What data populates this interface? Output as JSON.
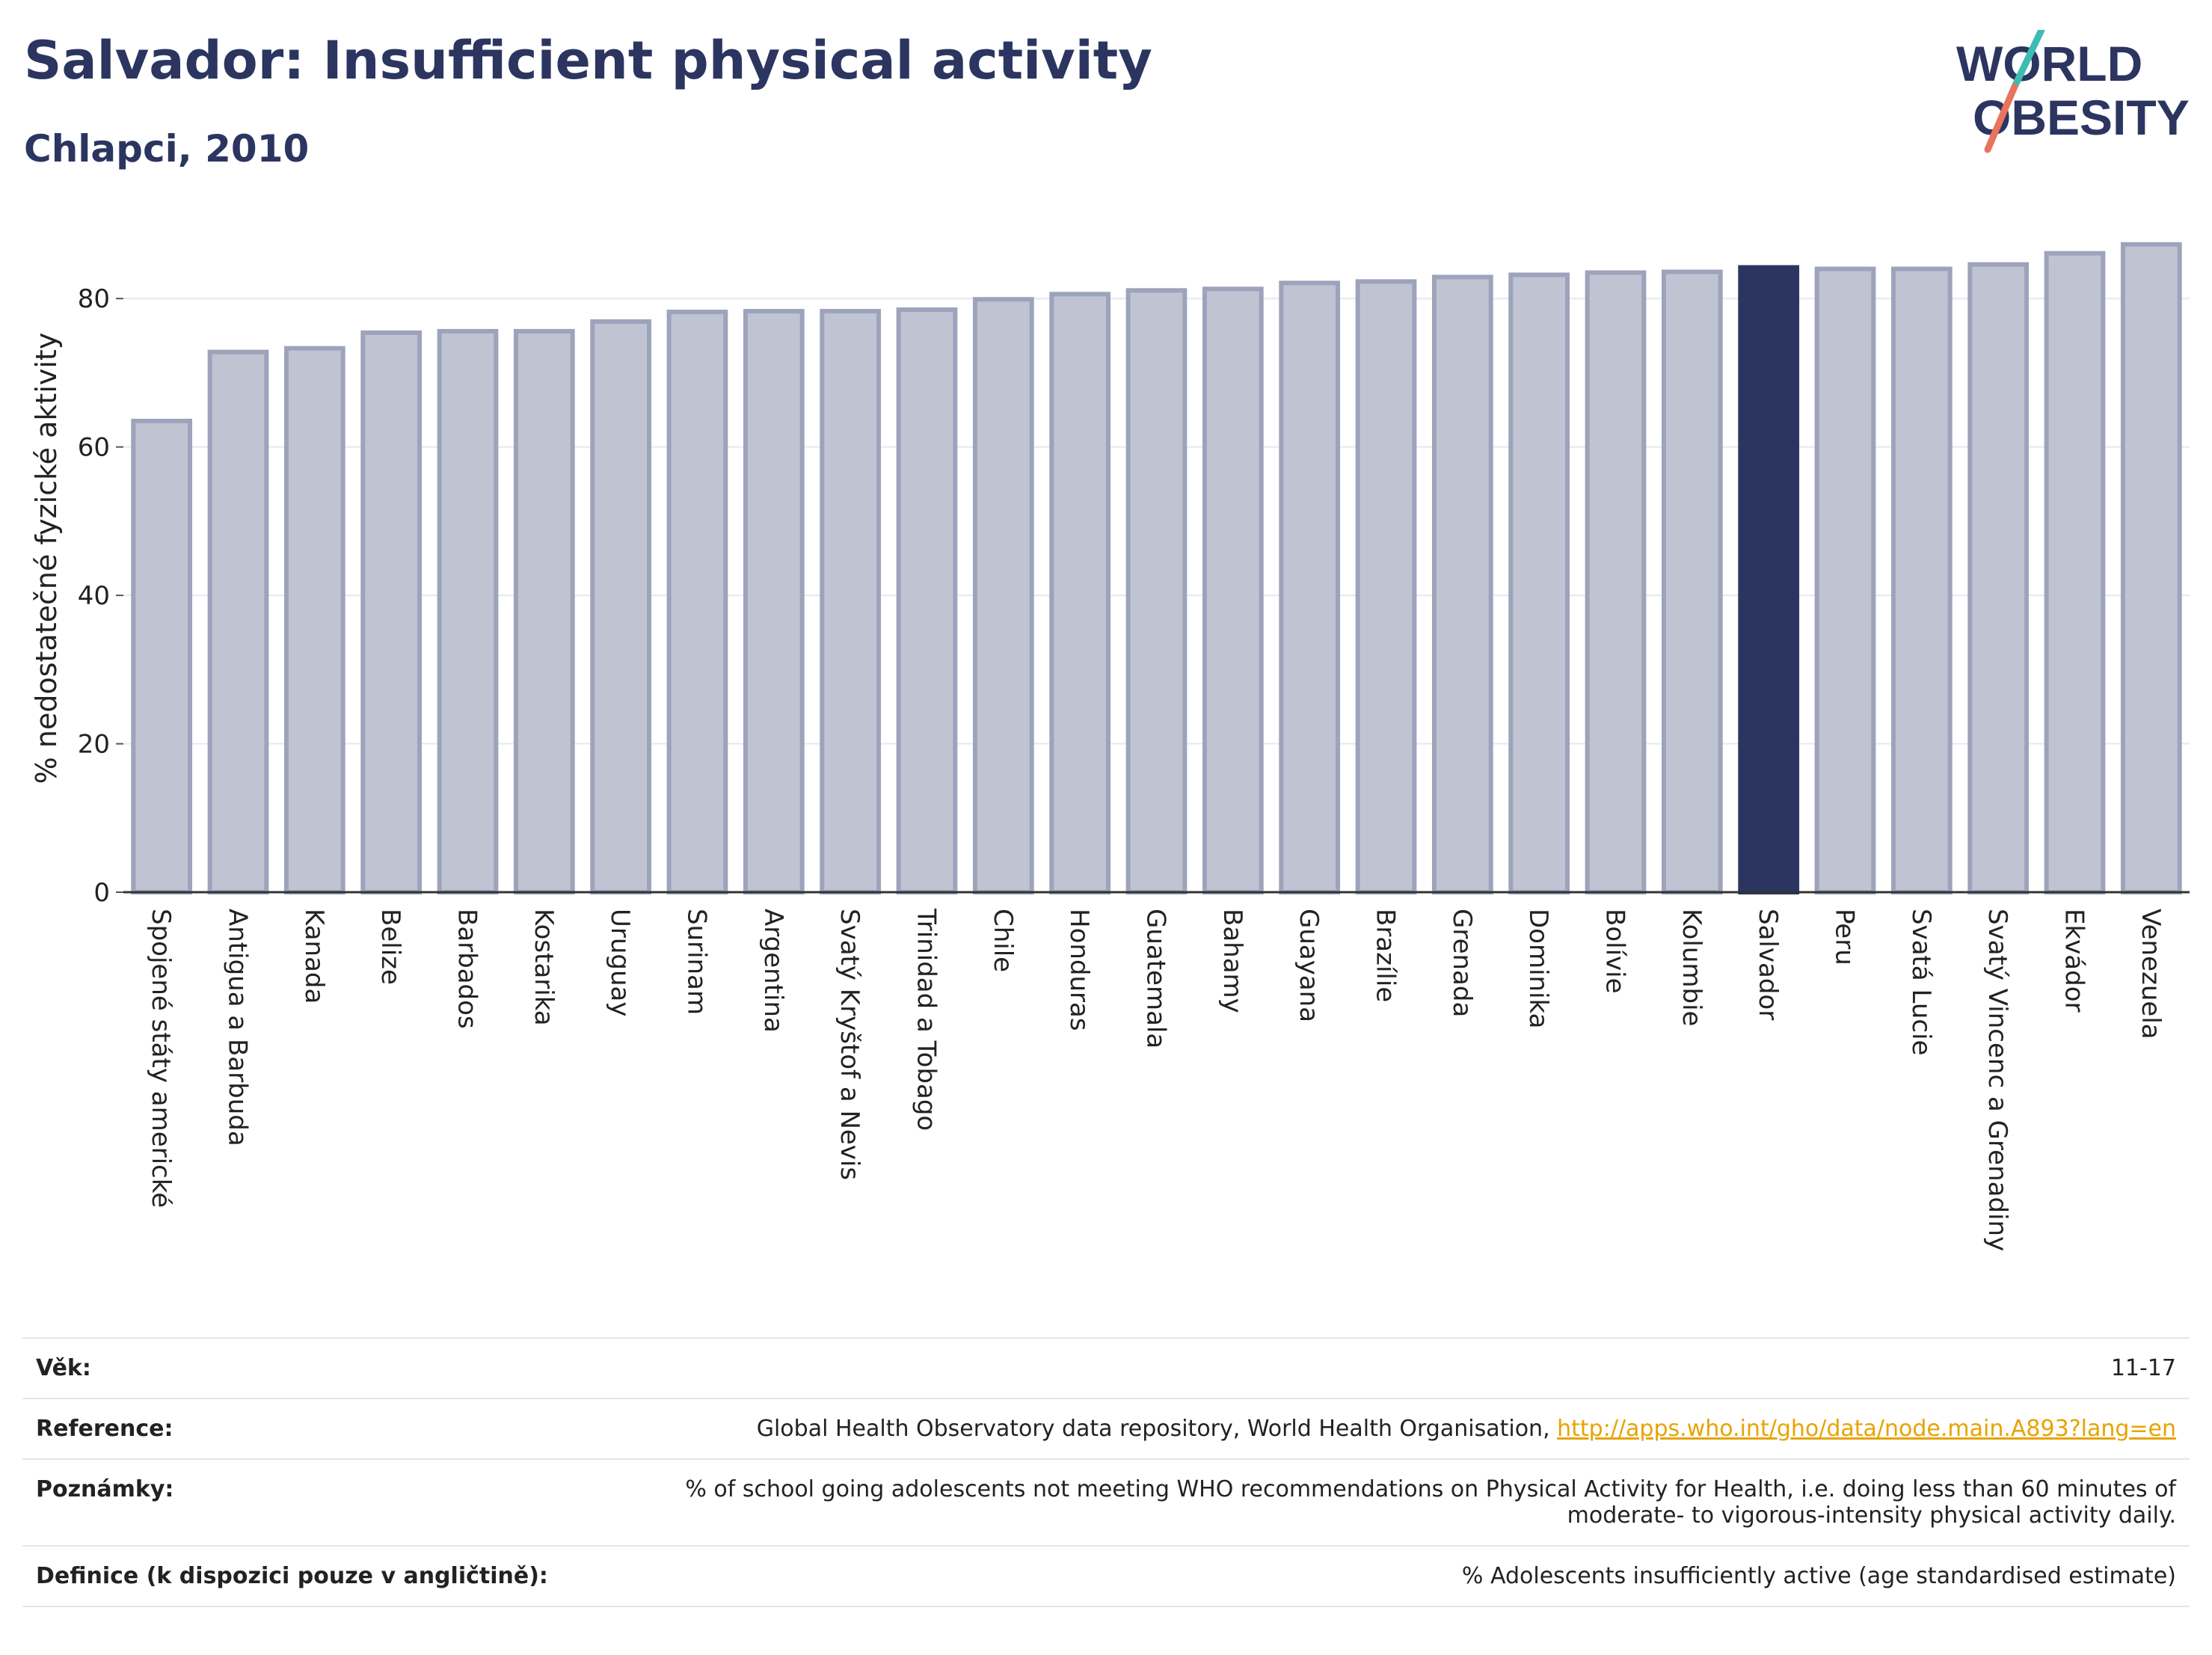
{
  "header": {
    "title": "Salvador: Insufficient physical activity",
    "subtitle": "Chlapci, 2010",
    "logo_line1": "WORLD",
    "logo_line2": "OBESITY"
  },
  "colors": {
    "bar": "#c0c3d2",
    "bar_stroke": "#9da3bb",
    "highlight": "#2b3560",
    "title": "#2b3560",
    "link": "#e7a400"
  },
  "chart_data": {
    "type": "bar",
    "ylabel": "% nedostatečné fyzické aktivity",
    "ylim": [
      0,
      90
    ],
    "yticks": [
      0,
      20,
      40,
      60,
      80
    ],
    "grid": true,
    "highlight": "Salvador",
    "categories": [
      "Spojené státy americké",
      "Antigua a Barbuda",
      "Kanada",
      "Belize",
      "Barbados",
      "Kostarika",
      "Uruguay",
      "Surinam",
      "Argentina",
      "Svatý Kryštof a Nevis",
      "Trinidad a Tobago",
      "Chile",
      "Honduras",
      "Guatemala",
      "Bahamy",
      "Guayana",
      "Brazílie",
      "Grenada",
      "Dominika",
      "Bolívie",
      "Kolumbie",
      "Salvador",
      "Peru",
      "Svatá Lucie",
      "Svatý Vincenc a Grenadiny",
      "Ekvádor",
      "Venezuela"
    ],
    "values": [
      63.5,
      72.8,
      73.3,
      75.4,
      75.6,
      75.6,
      76.9,
      78.2,
      78.3,
      78.3,
      78.5,
      79.9,
      80.6,
      81.1,
      81.3,
      82.1,
      82.3,
      82.9,
      83.2,
      83.5,
      83.6,
      84.2,
      84.0,
      84.0,
      84.6,
      86.1,
      87.3
    ]
  },
  "meta": [
    {
      "label": "Věk:",
      "value": "11-17"
    },
    {
      "label": "Reference:",
      "value": "Global Health Observatory data repository, World Health Organisation, ",
      "link": "http://apps.who.int/gho/data/node.main.A893?lang=en"
    },
    {
      "label": "Poznámky:",
      "value": "% of school going adolescents not meeting WHO recommendations on Physical Activity for Health, i.e. doing less than 60 minutes of moderate- to vigorous-intensity physical activity daily."
    },
    {
      "label": "Definice (k dispozici pouze v angličtině):",
      "value": "% Adolescents insufficiently active (age standardised estimate)"
    }
  ]
}
